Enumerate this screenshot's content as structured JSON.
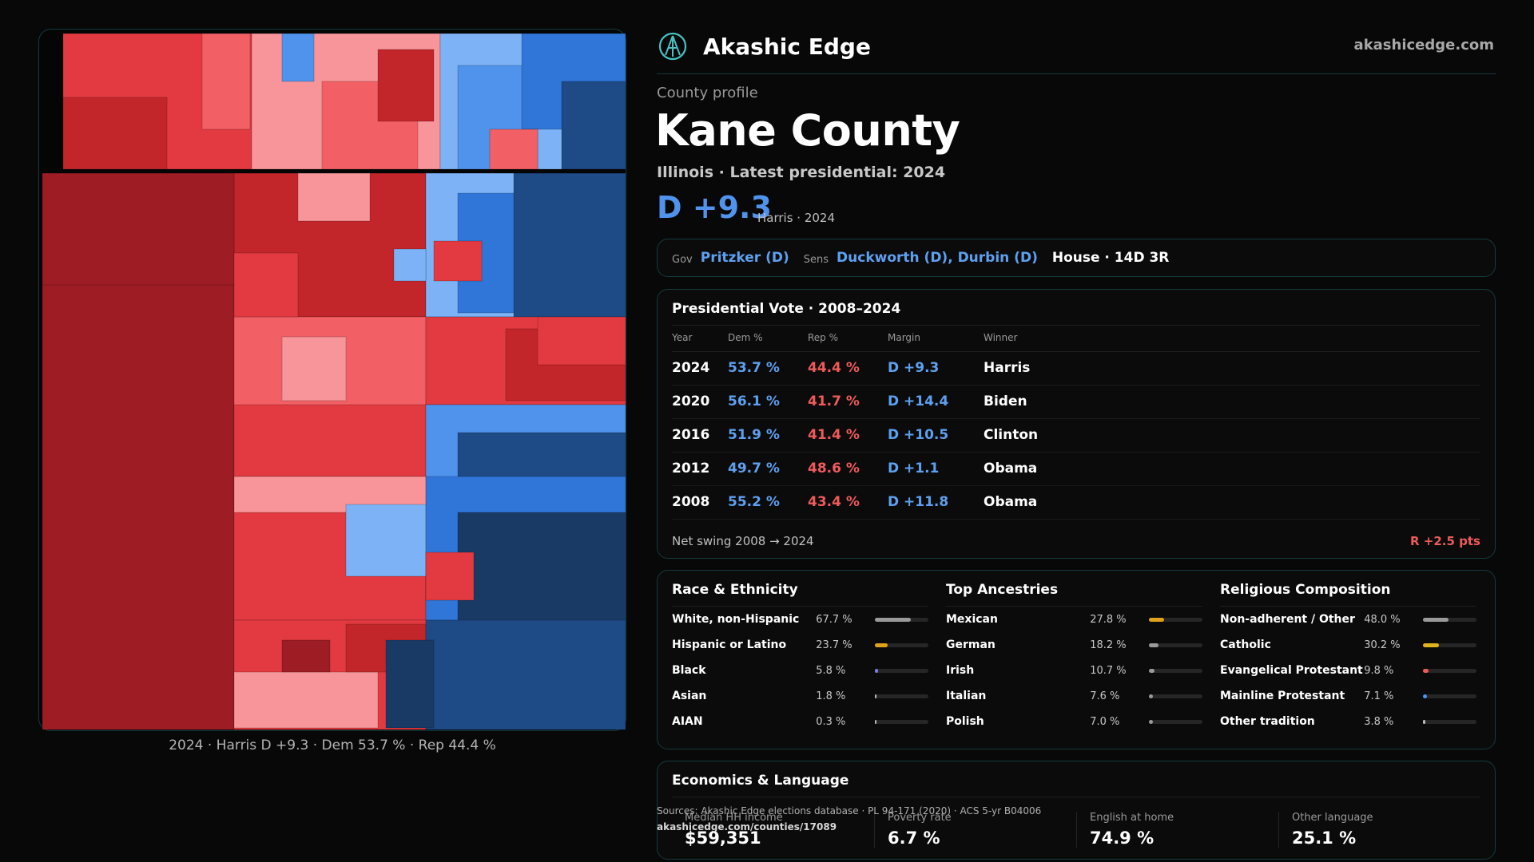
{
  "brand": {
    "name": "Akashic Edge",
    "url": "akashicedge.com"
  },
  "profile": {
    "eyebrow": "County profile",
    "county": "Kane County",
    "subtitle": "Illinois · Latest presidential: 2024",
    "margin": "D +9.3",
    "margin_note": "Harris · 2024"
  },
  "officials": {
    "gov_label": "Gov",
    "gov": "Pritzker (D)",
    "sens_label": "Sens",
    "sens": "Duckworth (D), Durbin (D)",
    "house": "House · 14D 3R"
  },
  "presidential": {
    "title": "Presidential Vote · 2008–2024",
    "columns": [
      "Year",
      "Dem %",
      "Rep %",
      "Margin",
      "Winner"
    ],
    "rows": [
      {
        "year": "2024",
        "dem": "53.7 %",
        "rep": "44.4 %",
        "margin": "D +9.3",
        "winner": "Harris"
      },
      {
        "year": "2020",
        "dem": "56.1 %",
        "rep": "41.7 %",
        "margin": "D +14.4",
        "winner": "Biden"
      },
      {
        "year": "2016",
        "dem": "51.9 %",
        "rep": "41.4 %",
        "margin": "D +10.5",
        "winner": "Clinton"
      },
      {
        "year": "2012",
        "dem": "49.7 %",
        "rep": "48.6 %",
        "margin": "D +1.1",
        "winner": "Obama"
      },
      {
        "year": "2008",
        "dem": "55.2 %",
        "rep": "43.4 %",
        "margin": "D +11.8",
        "winner": "Obama"
      }
    ],
    "swing_label": "Net swing 2008 → 2024",
    "swing_value": "R +2.5 pts"
  },
  "demographics": [
    {
      "title": "Race & Ethnicity",
      "items": [
        {
          "label": "White, non-Hispanic",
          "pct": "67.7 %",
          "value": 67.7,
          "color": "#9a9a9a"
        },
        {
          "label": "Hispanic or Latino",
          "pct": "23.7 %",
          "value": 23.7,
          "color": "#e0a21c"
        },
        {
          "label": "Black",
          "pct": "5.8 %",
          "value": 5.8,
          "color": "#7b7be0"
        },
        {
          "label": "Asian",
          "pct": "1.8 %",
          "value": 1.8,
          "color": "#bbbbbb"
        },
        {
          "label": "AIAN",
          "pct": "0.3 %",
          "value": 0.3,
          "color": "#bbbbbb"
        }
      ]
    },
    {
      "title": "Top Ancestries",
      "items": [
        {
          "label": "Mexican",
          "pct": "27.8 %",
          "value": 27.8,
          "color": "#e0a21c"
        },
        {
          "label": "German",
          "pct": "18.2 %",
          "value": 18.2,
          "color": "#9a9a9a"
        },
        {
          "label": "Irish",
          "pct": "10.7 %",
          "value": 10.7,
          "color": "#9a9a9a"
        },
        {
          "label": "Italian",
          "pct": "7.6 %",
          "value": 7.6,
          "color": "#9a9a9a"
        },
        {
          "label": "Polish",
          "pct": "7.0 %",
          "value": 7.0,
          "color": "#9a9a9a"
        }
      ]
    },
    {
      "title": "Religious Composition",
      "items": [
        {
          "label": "Non-adherent / Other",
          "pct": "48.0 %",
          "value": 48.0,
          "color": "#9a9a9a"
        },
        {
          "label": "Catholic",
          "pct": "30.2 %",
          "value": 30.2,
          "color": "#e0b21c"
        },
        {
          "label": "Evangelical Protestant",
          "pct": "9.8 %",
          "value": 9.8,
          "color": "#ef5a5a"
        },
        {
          "label": "Mainline Protestant",
          "pct": "7.1 %",
          "value": 7.1,
          "color": "#4f93ec"
        },
        {
          "label": "Other tradition",
          "pct": "3.8 %",
          "value": 3.8,
          "color": "#bbbbbb"
        }
      ]
    }
  ],
  "economics": {
    "title": "Economics & Language",
    "items": [
      {
        "label": "Median HH income",
        "value": "$59,351"
      },
      {
        "label": "Poverty rate",
        "value": "6.7 %"
      },
      {
        "label": "English at home",
        "value": "74.9 %"
      },
      {
        "label": "Other language",
        "value": "25.1 %"
      }
    ]
  },
  "sources": {
    "text": "Sources: Akashic Edge elections database · PL 94-171 (2020) · ACS 5-yr B04006",
    "url": "akashicedge.com/counties/17089"
  },
  "map": {
    "caption": "2024 · Harris D +9.3 · Dem 53.7 % · Rep 44.4 %",
    "palette": {
      "dark_red": "#9e1c24",
      "red": "#c2262b",
      "mid_red": "#e23a40",
      "light_red": "#f26065",
      "pink": "#f7959a",
      "light_blue": "#7db3f6",
      "mid_blue": "#4f93ec",
      "blue": "#2f76d8",
      "dark_blue": "#1e4a86",
      "navy": "#1a3a66"
    }
  }
}
